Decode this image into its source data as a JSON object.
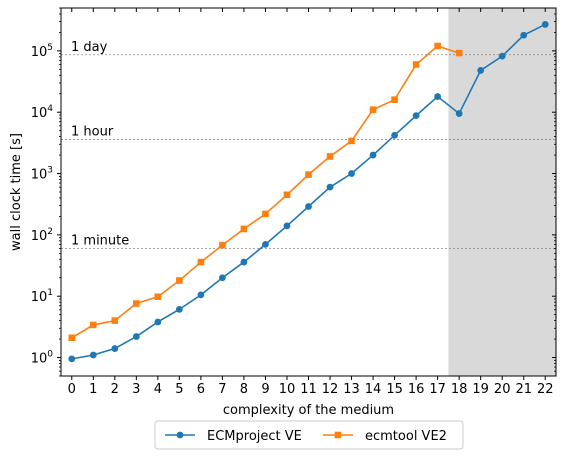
{
  "chart_data": {
    "type": "line",
    "xlabel": "complexity of the medium",
    "ylabel": "wall clock time [s]",
    "yscale": "log",
    "xlim": [
      -0.5,
      22.5
    ],
    "ylim": [
      0.5,
      500000
    ],
    "x_ticks": [
      0,
      1,
      2,
      3,
      4,
      5,
      6,
      7,
      8,
      9,
      10,
      11,
      12,
      13,
      14,
      15,
      16,
      17,
      18,
      19,
      20,
      21,
      22
    ],
    "y_ticks": [
      {
        "value": 1,
        "label": "10",
        "exp": "0"
      },
      {
        "value": 10,
        "label": "10",
        "exp": "1"
      },
      {
        "value": 100,
        "label": "10",
        "exp": "2"
      },
      {
        "value": 1000,
        "label": "10",
        "exp": "3"
      },
      {
        "value": 10000,
        "label": "10",
        "exp": "4"
      },
      {
        "value": 100000,
        "label": "10",
        "exp": "5"
      }
    ],
    "shaded_region": {
      "x_start": 17.5,
      "x_end": 22.5,
      "color": "#d9d9d9"
    },
    "reference_lines": [
      {
        "value": 60,
        "label": "1 minute"
      },
      {
        "value": 3600,
        "label": "1 hour"
      },
      {
        "value": 86400,
        "label": "1 day"
      }
    ],
    "legend_position": "bottom-center-outside",
    "series": [
      {
        "name": "ECMproject VE",
        "color": "#1f77b4",
        "marker": "circle",
        "x": [
          0,
          1,
          2,
          3,
          4,
          5,
          6,
          7,
          8,
          9,
          10,
          11,
          12,
          13,
          14,
          15,
          16,
          17,
          18,
          19,
          20,
          21,
          22
        ],
        "values": [
          0.95,
          1.1,
          1.4,
          2.2,
          3.8,
          6.1,
          10.5,
          20,
          36,
          70,
          140,
          290,
          600,
          1000,
          2000,
          4200,
          8800,
          18000,
          9500,
          48000,
          82000,
          180000,
          270000
        ]
      },
      {
        "name": "ecmtool VE2",
        "color": "#ff7f0e",
        "marker": "square",
        "x": [
          0,
          1,
          2,
          3,
          4,
          5,
          6,
          7,
          8,
          9,
          10,
          11,
          12,
          13,
          14,
          15,
          16,
          17,
          18
        ],
        "values": [
          2.1,
          3.4,
          4.0,
          7.6,
          9.8,
          18,
          36,
          68,
          125,
          220,
          450,
          960,
          1900,
          3400,
          11000,
          16000,
          60000,
          120000,
          92000
        ]
      }
    ]
  }
}
